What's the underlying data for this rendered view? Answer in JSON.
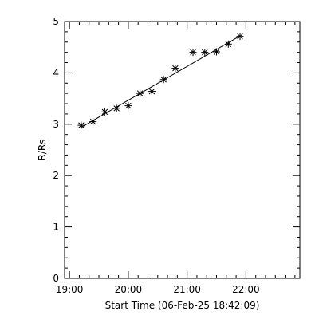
{
  "chart_data": {
    "type": "scatter",
    "xlabel": "Start Time (06-Feb-25 18:42:09)",
    "ylabel": "R/Rs",
    "xlim": [
      "18:55",
      "22:55"
    ],
    "ylim": [
      0,
      5
    ],
    "xticks": [
      {
        "value": "19:00",
        "label": "19:00"
      },
      {
        "value": "20:00",
        "label": "20:00"
      },
      {
        "value": "21:00",
        "label": "21:00"
      },
      {
        "value": "22:00",
        "label": "22:00"
      }
    ],
    "yticks": [
      {
        "value": 0,
        "label": "0"
      },
      {
        "value": 1,
        "label": "1"
      },
      {
        "value": 2,
        "label": "2"
      },
      {
        "value": 3,
        "label": "3"
      },
      {
        "value": 4,
        "label": "4"
      },
      {
        "value": 5,
        "label": "5"
      }
    ],
    "grid": false,
    "marker": "asterisk",
    "series": [
      {
        "points": [
          {
            "x": "19:12",
            "y": 2.98
          },
          {
            "x": "19:24",
            "y": 3.05
          },
          {
            "x": "19:36",
            "y": 3.24
          },
          {
            "x": "19:48",
            "y": 3.31
          },
          {
            "x": "20:00",
            "y": 3.36
          },
          {
            "x": "20:12",
            "y": 3.6
          },
          {
            "x": "20:24",
            "y": 3.64
          },
          {
            "x": "20:36",
            "y": 3.87
          },
          {
            "x": "20:48",
            "y": 4.09
          },
          {
            "x": "21:06",
            "y": 4.4
          },
          {
            "x": "21:18",
            "y": 4.4
          },
          {
            "x": "21:30",
            "y": 4.41
          },
          {
            "x": "21:42",
            "y": 4.56
          },
          {
            "x": "21:54",
            "y": 4.71
          }
        ]
      }
    ],
    "fit": {
      "type": "line",
      "points": [
        {
          "x": "19:12",
          "y": 2.94
        },
        {
          "x": "21:54",
          "y": 4.72
        }
      ]
    }
  }
}
